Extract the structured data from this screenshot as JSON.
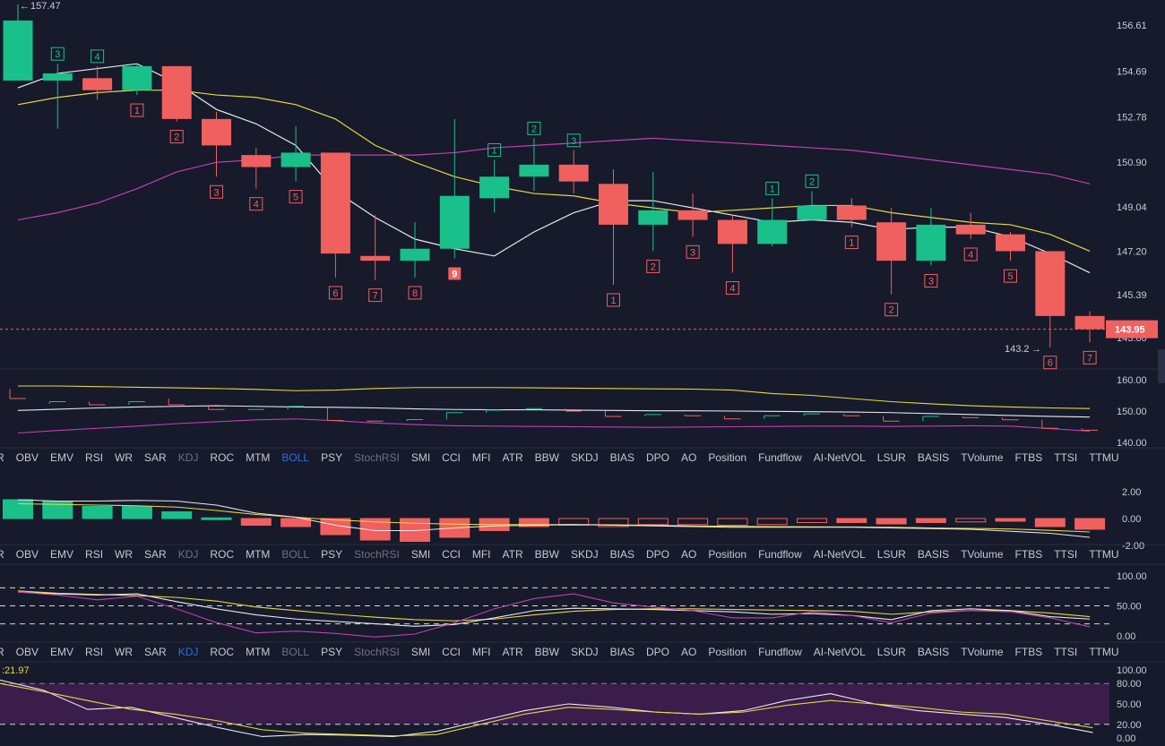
{
  "chart_data": [
    {
      "type": "candlestick",
      "x": [
        1,
        2,
        3,
        4,
        5,
        6,
        7,
        8,
        9,
        10,
        11,
        12,
        13,
        14,
        15,
        16,
        17,
        18,
        19,
        20,
        21,
        22,
        23,
        24,
        25,
        26,
        27,
        28
      ],
      "candles": [
        {
          "o": 154.3,
          "h": 157.47,
          "l": null,
          "c": 156.8
        },
        {
          "o": 154.3,
          "h": 155.0,
          "l": 152.3,
          "c": 154.6
        },
        {
          "o": 154.4,
          "h": 154.9,
          "l": 153.5,
          "c": 153.9
        },
        {
          "o": 153.9,
          "h": 155.0,
          "l": 153.7,
          "c": 154.9
        },
        {
          "o": 154.9,
          "h": 154.9,
          "l": 152.6,
          "c": 152.7
        },
        {
          "o": 152.7,
          "h": 153.0,
          "l": 150.3,
          "c": 151.6
        },
        {
          "o": 151.2,
          "h": 151.5,
          "l": 149.8,
          "c": 150.7
        },
        {
          "o": 150.7,
          "h": 152.4,
          "l": 150.1,
          "c": 151.3
        },
        {
          "o": 151.3,
          "h": 151.3,
          "l": 146.1,
          "c": 147.1
        },
        {
          "o": 147.0,
          "h": 148.7,
          "l": 146.0,
          "c": 146.8
        },
        {
          "o": 146.8,
          "h": 148.4,
          "l": 146.1,
          "c": 147.3
        },
        {
          "o": 147.3,
          "h": 152.7,
          "l": 146.9,
          "c": 149.5
        },
        {
          "o": 149.4,
          "h": 151.0,
          "l": 148.8,
          "c": 150.3
        },
        {
          "o": 150.3,
          "h": 151.9,
          "l": 149.7,
          "c": 150.8
        },
        {
          "o": 150.8,
          "h": 151.4,
          "l": 149.6,
          "c": 150.1
        },
        {
          "o": 150.0,
          "h": 150.6,
          "l": 145.8,
          "c": 148.3
        },
        {
          "o": 148.3,
          "h": 150.5,
          "l": 147.2,
          "c": 148.9
        },
        {
          "o": 148.9,
          "h": 149.6,
          "l": 147.8,
          "c": 148.5
        },
        {
          "o": 148.5,
          "h": 148.7,
          "l": 146.3,
          "c": 147.5
        },
        {
          "o": 147.5,
          "h": 149.4,
          "l": 147.4,
          "c": 148.5
        },
        {
          "o": 148.5,
          "h": 149.7,
          "l": 148.5,
          "c": 149.1
        },
        {
          "o": 149.1,
          "h": 149.4,
          "l": 148.2,
          "c": 148.5
        },
        {
          "o": 148.4,
          "h": 149.0,
          "l": 145.4,
          "c": 146.8
        },
        {
          "o": 146.8,
          "h": 149.0,
          "l": 146.6,
          "c": 148.3
        },
        {
          "o": 148.3,
          "h": 148.8,
          "l": 147.7,
          "c": 147.9
        },
        {
          "o": 147.9,
          "h": 148.0,
          "l": 146.8,
          "c": 147.2
        },
        {
          "o": 147.2,
          "h": 147.2,
          "l": 143.2,
          "c": 144.5
        },
        {
          "o": 144.5,
          "h": 144.7,
          "l": 143.4,
          "c": 143.95
        }
      ],
      "overlays": [
        {
          "color": "#e8e8ee",
          "values": [
            154.0,
            154.6,
            154.8,
            155.0,
            154.2,
            153.1,
            152.5,
            151.6,
            149.7,
            148.6,
            147.7,
            147.3,
            147.0,
            148.0,
            148.8,
            149.3,
            149.3,
            149.0,
            148.7,
            148.4,
            148.5,
            148.4,
            148.1,
            148.2,
            148.2,
            147.8,
            147.1,
            146.3
          ]
        },
        {
          "color": "#e8d83a",
          "values": [
            153.3,
            153.6,
            153.8,
            153.9,
            153.9,
            153.7,
            153.6,
            153.3,
            152.7,
            151.6,
            150.9,
            150.3,
            149.9,
            149.6,
            149.5,
            149.2,
            149.0,
            148.8,
            148.9,
            149.0,
            149.1,
            149.1,
            148.8,
            148.6,
            148.4,
            148.3,
            147.9,
            147.2
          ]
        },
        {
          "color": "#c23fb0",
          "values": [
            148.5,
            148.8,
            149.2,
            149.8,
            150.5,
            150.9,
            151.0,
            151.2,
            151.2,
            151.2,
            151.2,
            151.3,
            151.5,
            151.6,
            151.7,
            151.8,
            151.9,
            151.8,
            151.7,
            151.6,
            151.5,
            151.4,
            151.2,
            151.0,
            150.8,
            150.6,
            150.4,
            150.0
          ]
        }
      ],
      "y_ticks": [
        "156.61",
        "154.69",
        "152.78",
        "150.90",
        "149.04",
        "147.20",
        "145.39",
        "143.60"
      ],
      "last_price": "143.95",
      "max_label": "157.47",
      "min_label": "143.2",
      "seq_labels": [
        {
          "i": 2,
          "text": "3",
          "pos": "above",
          "color": "green"
        },
        {
          "i": 3,
          "text": "4",
          "pos": "above",
          "color": "green"
        },
        {
          "i": 4,
          "text": "1",
          "pos": "below",
          "color": "red"
        },
        {
          "i": 5,
          "text": "2",
          "pos": "below",
          "color": "red"
        },
        {
          "i": 6,
          "text": "3",
          "pos": "below",
          "color": "red"
        },
        {
          "i": 7,
          "text": "4",
          "pos": "below",
          "color": "red"
        },
        {
          "i": 8,
          "text": "5",
          "pos": "below",
          "color": "red"
        },
        {
          "i": 9,
          "text": "6",
          "pos": "below",
          "color": "red"
        },
        {
          "i": 10,
          "text": "7",
          "pos": "below",
          "color": "red"
        },
        {
          "i": 11,
          "text": "8",
          "pos": "below",
          "color": "red"
        },
        {
          "i": 12,
          "text": "9",
          "pos": "below",
          "color": "red-solid"
        },
        {
          "i": 13,
          "text": "1",
          "pos": "above",
          "color": "green"
        },
        {
          "i": 14,
          "text": "2",
          "pos": "above",
          "color": "green"
        },
        {
          "i": 15,
          "text": "3",
          "pos": "above",
          "color": "green"
        },
        {
          "i": 16,
          "text": "1",
          "pos": "below",
          "color": "red"
        },
        {
          "i": 17,
          "text": "2",
          "pos": "below",
          "color": "red"
        },
        {
          "i": 18,
          "text": "3",
          "pos": "below",
          "color": "red"
        },
        {
          "i": 19,
          "text": "4",
          "pos": "below",
          "color": "red"
        },
        {
          "i": 20,
          "text": "1",
          "pos": "above",
          "color": "green"
        },
        {
          "i": 21,
          "text": "2",
          "pos": "above",
          "color": "green"
        },
        {
          "i": 22,
          "text": "1",
          "pos": "below",
          "color": "red"
        },
        {
          "i": 23,
          "text": "2",
          "pos": "below",
          "color": "red"
        },
        {
          "i": 24,
          "text": "3",
          "pos": "below",
          "color": "red"
        },
        {
          "i": 25,
          "text": "4",
          "pos": "below",
          "color": "red"
        },
        {
          "i": 26,
          "text": "5",
          "pos": "below",
          "color": "red"
        },
        {
          "i": 27,
          "text": "6",
          "pos": "below",
          "color": "red"
        },
        {
          "i": 28,
          "text": "7",
          "pos": "below",
          "color": "red"
        }
      ]
    },
    {
      "type": "line",
      "y_ticks": [
        "160.00",
        "150.00",
        "140.00"
      ],
      "series": [
        {
          "color": "#e8d83a",
          "values": [
            158.0,
            158.0,
            157.8,
            157.6,
            157.4,
            157.2,
            156.9,
            156.5,
            156.7,
            157.2,
            157.5,
            157.5,
            157.5,
            157.4,
            157.3,
            157.2,
            157.1,
            157.0,
            156.7,
            155.6,
            155.0,
            154.0,
            153.0,
            152.3,
            151.7,
            151.3,
            151.0,
            150.8
          ]
        },
        {
          "color": "#e8e8ee",
          "values": [
            150.2,
            150.6,
            151.0,
            151.3,
            151.5,
            151.7,
            151.5,
            151.3,
            151.2,
            151.0,
            150.7,
            150.5,
            150.4,
            150.4,
            150.3,
            150.2,
            150.1,
            150.1,
            150.0,
            149.9,
            149.8,
            149.7,
            149.5,
            149.2,
            148.9,
            148.6,
            148.3,
            148.1
          ]
        },
        {
          "color": "#c23fb0",
          "values": [
            143.0,
            143.8,
            144.5,
            145.2,
            146.0,
            146.6,
            147.2,
            147.5,
            146.9,
            146.2,
            145.7,
            145.3,
            145.2,
            145.1,
            145.0,
            144.9,
            144.8,
            144.9,
            145.0,
            145.1,
            145.2,
            145.2,
            145.1,
            145.2,
            145.3,
            145.2,
            144.4,
            143.6
          ]
        }
      ],
      "mini_candles": [
        [
          157,
          154
        ],
        [
          152.3,
          153
        ],
        [
          153,
          152
        ],
        [
          152,
          153
        ],
        [
          154,
          152
        ],
        [
          152,
          150.5
        ],
        [
          150.5,
          150.5
        ],
        [
          150.5,
          151.5
        ],
        [
          151,
          147
        ],
        [
          147,
          146.8
        ],
        [
          146.8,
          147.3
        ],
        [
          147.3,
          149.5
        ],
        [
          149.5,
          150.3
        ],
        [
          150.3,
          150.8
        ],
        [
          150.8,
          150
        ],
        [
          150,
          148.3
        ],
        [
          148.3,
          148.9
        ],
        [
          148.9,
          148.5
        ],
        [
          148.5,
          147.5
        ],
        [
          147.5,
          148.5
        ],
        [
          148.5,
          149.1
        ],
        [
          149.1,
          148.5
        ],
        [
          148.5,
          146.8
        ],
        [
          146.8,
          148.3
        ],
        [
          148.3,
          147.9
        ],
        [
          147.9,
          147.2
        ],
        [
          147.2,
          144.5
        ],
        [
          144.5,
          143.9
        ]
      ]
    },
    {
      "type": "bar",
      "y_ticks": [
        "2.00",
        "0.00",
        "-2.00"
      ],
      "values": [
        1.4,
        1.3,
        0.9,
        0.9,
        0.5,
        0.05,
        -0.5,
        -0.6,
        -1.2,
        -1.6,
        -1.7,
        -1.4,
        -0.9,
        -0.6,
        -0.5,
        -0.6,
        -0.45,
        -0.45,
        -0.5,
        -0.45,
        -0.3,
        -0.3,
        -0.4,
        -0.3,
        -0.25,
        -0.2,
        -0.6,
        -0.8
      ],
      "series": [
        {
          "color": "#e8d83a",
          "values": [
            1.1,
            1.05,
            1.0,
            0.95,
            0.85,
            0.6,
            0.3,
            0.1,
            -0.1,
            -0.25,
            -0.35,
            -0.42,
            -0.45,
            -0.45,
            -0.45,
            -0.47,
            -0.5,
            -0.55,
            -0.58,
            -0.6,
            -0.62,
            -0.63,
            -0.65,
            -0.7,
            -0.74,
            -0.78,
            -0.88,
            -1.0
          ]
        },
        {
          "color": "#e8e8ee",
          "values": [
            1.4,
            1.3,
            1.3,
            1.35,
            1.3,
            1.0,
            0.4,
            0.1,
            -0.5,
            -0.9,
            -0.9,
            -0.7,
            -0.55,
            -0.5,
            -0.45,
            -0.5,
            -0.55,
            -0.6,
            -0.65,
            -0.65,
            -0.65,
            -0.65,
            -0.7,
            -0.75,
            -0.8,
            -0.95,
            -1.1,
            -1.4
          ]
        }
      ]
    },
    {
      "type": "line",
      "y_ticks": [
        "100.00",
        "50.00",
        "0.00"
      ],
      "series": [
        {
          "color": "#e8d83a",
          "values": [
            75,
            71,
            69,
            67,
            64,
            58,
            48,
            42,
            36,
            31,
            27,
            25,
            28,
            35,
            41,
            44,
            45,
            45,
            44,
            43,
            42,
            41,
            36,
            40,
            42,
            42,
            38,
            32
          ]
        },
        {
          "color": "#e8e8ee",
          "values": [
            73,
            70,
            68,
            70,
            57,
            45,
            35,
            28,
            24,
            20,
            16,
            19,
            30,
            42,
            46,
            45,
            44,
            42,
            40,
            36,
            37,
            34,
            27,
            42,
            45,
            42,
            32,
            28
          ]
        },
        {
          "color": "#c23fb0",
          "values": [
            73,
            68,
            60,
            66,
            45,
            22,
            5,
            8,
            4,
            -2,
            3,
            22,
            45,
            62,
            70,
            55,
            48,
            42,
            30,
            30,
            40,
            34,
            22,
            38,
            42,
            40,
            30,
            15
          ]
        }
      ],
      "dashed_levels": [
        80,
        50,
        20
      ]
    },
    {
      "type": "area",
      "title": ":21.97",
      "y_ticks": [
        "100.00",
        "80.00",
        "50.00",
        "20.00",
        "0.00"
      ],
      "series": [
        {
          "color": "#e8e8ee",
          "values": [
            85,
            70,
            42,
            45,
            30,
            15,
            2,
            5,
            4,
            2,
            10,
            25,
            40,
            50,
            45,
            38,
            35,
            40,
            55,
            65,
            50,
            40,
            35,
            30,
            20,
            8
          ]
        },
        {
          "color": "#e8d83a",
          "values": [
            80,
            68,
            55,
            42,
            35,
            25,
            12,
            7,
            5,
            3,
            5,
            20,
            35,
            45,
            42,
            38,
            35,
            38,
            48,
            55,
            50,
            45,
            38,
            35,
            25,
            15
          ]
        }
      ],
      "dashed_levels": [
        80,
        20
      ]
    }
  ],
  "indicator_tabs": {
    "row1": {
      "items": [
        "R",
        "OBV",
        "EMV",
        "RSI",
        "WR",
        "SAR",
        "KDJ",
        "ROC",
        "MTM",
        "BOLL",
        "PSY",
        "StochRSI",
        "SMI",
        "CCI",
        "MFI",
        "ATR",
        "BBW",
        "SKDJ",
        "BIAS",
        "DPO",
        "AO",
        "Position",
        "Fundflow",
        "AI-NetVOL",
        "LSUR",
        "BASIS",
        "TVolume",
        "FTBS",
        "TTSI",
        "TTMU"
      ],
      "active": "BOLL",
      "dim": [
        "KDJ",
        "StochRSI"
      ]
    },
    "row2": {
      "items": [
        "R",
        "OBV",
        "EMV",
        "RSI",
        "WR",
        "SAR",
        "KDJ",
        "ROC",
        "MTM",
        "BOLL",
        "PSY",
        "StochRSI",
        "SMI",
        "CCI",
        "MFI",
        "ATR",
        "BBW",
        "SKDJ",
        "BIAS",
        "DPO",
        "AO",
        "Position",
        "Fundflow",
        "AI-NetVOL",
        "LSUR",
        "BASIS",
        "TVolume",
        "FTBS",
        "TTSI",
        "TTMU"
      ],
      "active": "",
      "dim": [
        "KDJ",
        "BOLL",
        "StochRSI"
      ]
    },
    "row3": {
      "items": [
        "R",
        "OBV",
        "EMV",
        "RSI",
        "WR",
        "SAR",
        "KDJ",
        "ROC",
        "MTM",
        "BOLL",
        "PSY",
        "StochRSI",
        "SMI",
        "CCI",
        "MFI",
        "ATR",
        "BBW",
        "SKDJ",
        "BIAS",
        "DPO",
        "AO",
        "Position",
        "Fundflow",
        "AI-NetVOL",
        "LSUR",
        "BASIS",
        "TVolume",
        "FTBS",
        "TTSI",
        "TTMU"
      ],
      "active": "KDJ",
      "dim": [
        "BOLL",
        "StochRSI"
      ]
    }
  },
  "colors": {
    "up": "#19c08a",
    "down": "#f0605e",
    "background": "#161a2b",
    "grid": "#262b3d",
    "text": "#c9ccd6",
    "active": "#2f6fe0"
  }
}
